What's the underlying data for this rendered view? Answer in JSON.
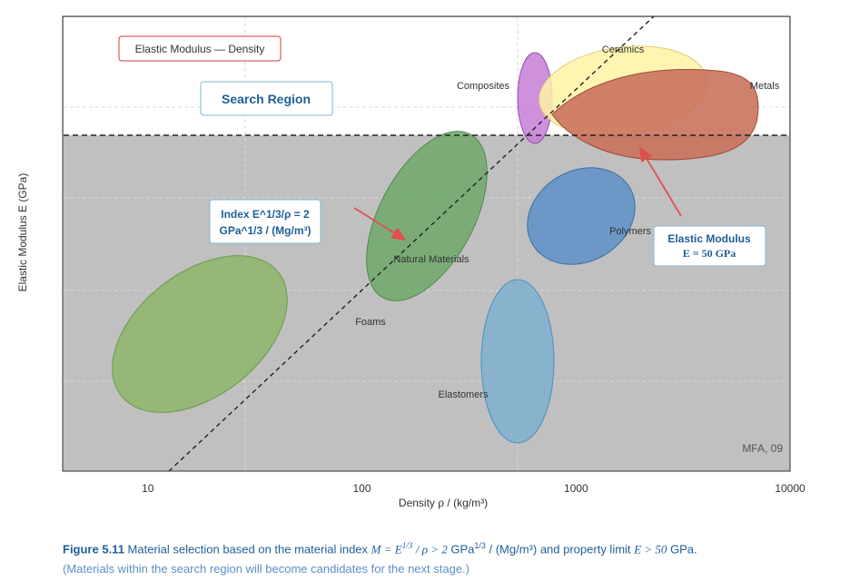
{
  "chart_data": {
    "type": "scatter",
    "xscale": "log",
    "yscale": "log",
    "xlabel": "Density ρ / (kg/m³)",
    "ylabel": "Elastic Modulus E (GPa)",
    "xticks": [
      10,
      100,
      1000,
      10000
    ],
    "xlim": [
      4,
      10000
    ],
    "title_box": "Elastic Modulus — Density",
    "search_region_label": "Search Region",
    "watermark": "MFA, 09",
    "property_limit": {
      "E_value": 50,
      "label_line1": "Elastic Modulus",
      "label_line2": "E = 50 GPa"
    },
    "index_line": {
      "label_line1": "Index E^1/3/ρ = 2",
      "label_line2": "GPa^1/3 / (Mg/m³)"
    },
    "materials": [
      {
        "name": "Composites",
        "color": "#c77dd6"
      },
      {
        "name": "Ceramics",
        "color": "#fff3a6"
      },
      {
        "name": "Metals",
        "color": "#c8705a"
      },
      {
        "name": "Polymers",
        "color": "#5d8fc7"
      },
      {
        "name": "Natural Materials",
        "color": "#6ea86a"
      },
      {
        "name": "Foams",
        "color": "#8db56a"
      },
      {
        "name": "Elastomers",
        "color": "#7fb0cf"
      }
    ]
  },
  "caption": {
    "figure_num": "Figure 5.11",
    "text_a": "Material selection based on the material index",
    "formula": "M = E",
    "formula_exp": "1/3",
    "formula_b": "/ ρ > 2",
    "unit_a": "GPa",
    "unit_exp": "1/3",
    "unit_b": "/ (Mg/m³) and property limit",
    "limit": "E > 50",
    "unit_c": "GPa.",
    "line2": "(Materials within the search region will become candidates for the next stage.)"
  },
  "colors": {
    "plot_bg": "#c0c0c0",
    "search_bg": "#ffffff",
    "arrow": "#e05050",
    "label_blue": "#1f5f99"
  }
}
